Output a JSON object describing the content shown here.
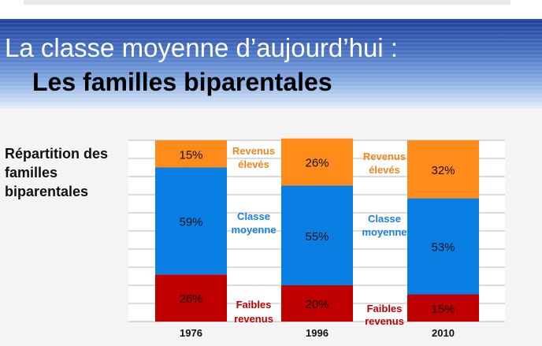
{
  "slide": {
    "title_line1": "La classe moyenne d’aujourd’hui :",
    "title_line2": "Les familles biparentales",
    "side_label": "Répartition des familles biparentales"
  },
  "colors": {
    "faibles": "#c00000",
    "classe": "#0a7fe3",
    "eleves": "#ff8c1a",
    "classe_text": "#1a7fe0",
    "eleves_text": "#f08520",
    "faibles_text": "#c00000"
  },
  "chart_data": {
    "type": "bar",
    "stacked": true,
    "categories": [
      "1976",
      "1996",
      "2010"
    ],
    "ylim": [
      0,
      100
    ],
    "grid": true,
    "series": [
      {
        "name": "Faibles revenus",
        "values": [
          26,
          20,
          15
        ],
        "labels": [
          "26%",
          "20%",
          "15%"
        ]
      },
      {
        "name": "Classe moyenne",
        "values": [
          59,
          55,
          53
        ],
        "labels": [
          "59%",
          "55%",
          "53%"
        ]
      },
      {
        "name": "Revenus élevés",
        "values": [
          15,
          26,
          32
        ],
        "labels": [
          "15%",
          "26%",
          "32%"
        ]
      }
    ],
    "annotations": [
      {
        "lines": [
          "Revenus",
          "élevés"
        ],
        "series": "Revenus élevés"
      },
      {
        "lines": [
          "Classe",
          "moyenne"
        ],
        "series": "Classe moyenne"
      },
      {
        "lines": [
          "Faibles",
          "revenus"
        ],
        "series": "Faibles revenus"
      },
      {
        "lines": [
          "Revenus",
          "élevés"
        ],
        "series": "Revenus élevés"
      },
      {
        "lines": [
          "Classe",
          "moyenne"
        ],
        "series": "Classe moyenne"
      },
      {
        "lines": [
          "Faibles",
          "revenus"
        ],
        "series": "Faibles revenus"
      }
    ]
  }
}
